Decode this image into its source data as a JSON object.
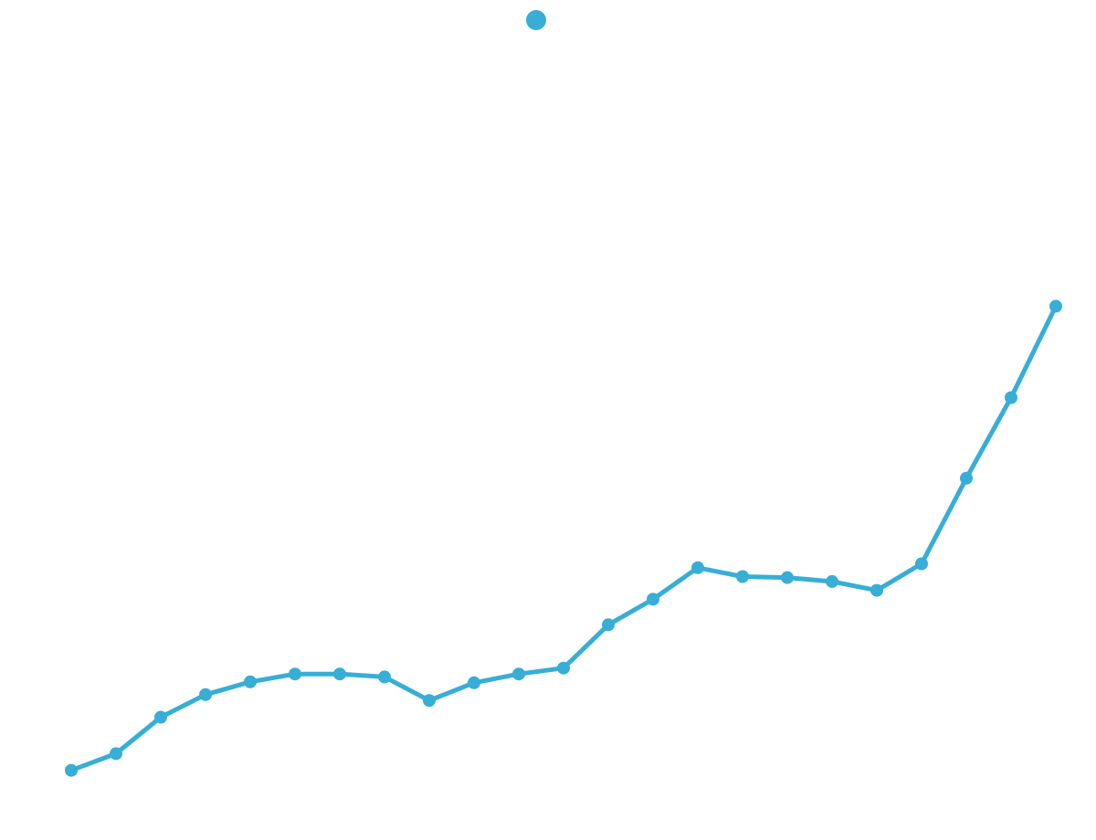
{
  "chart_data": {
    "type": "line",
    "title": "",
    "xlabel": "",
    "ylabel": "",
    "grid": false,
    "legend": {
      "placement": "top-center",
      "marker": "circle"
    },
    "axes_visible": false,
    "series": [
      {
        "name": "",
        "color": "#37aed5",
        "marker": "circle",
        "x": [
          1,
          2,
          3,
          4,
          5,
          6,
          7,
          8,
          9,
          10,
          11,
          12,
          13,
          14,
          15,
          16,
          17,
          18,
          19,
          20,
          21,
          22,
          23
        ],
        "values": [
          1.7,
          3.4,
          7.1,
          9.4,
          10.7,
          11.5,
          11.5,
          11.2,
          8.8,
          10.6,
          11.5,
          12.1,
          16.5,
          19.1,
          22.3,
          21.4,
          21.3,
          20.9,
          20.0,
          22.7,
          31.4,
          39.6,
          48.9
        ]
      }
    ],
    "xlim": [
      1,
      23
    ],
    "ylim": [
      0,
      78
    ]
  }
}
